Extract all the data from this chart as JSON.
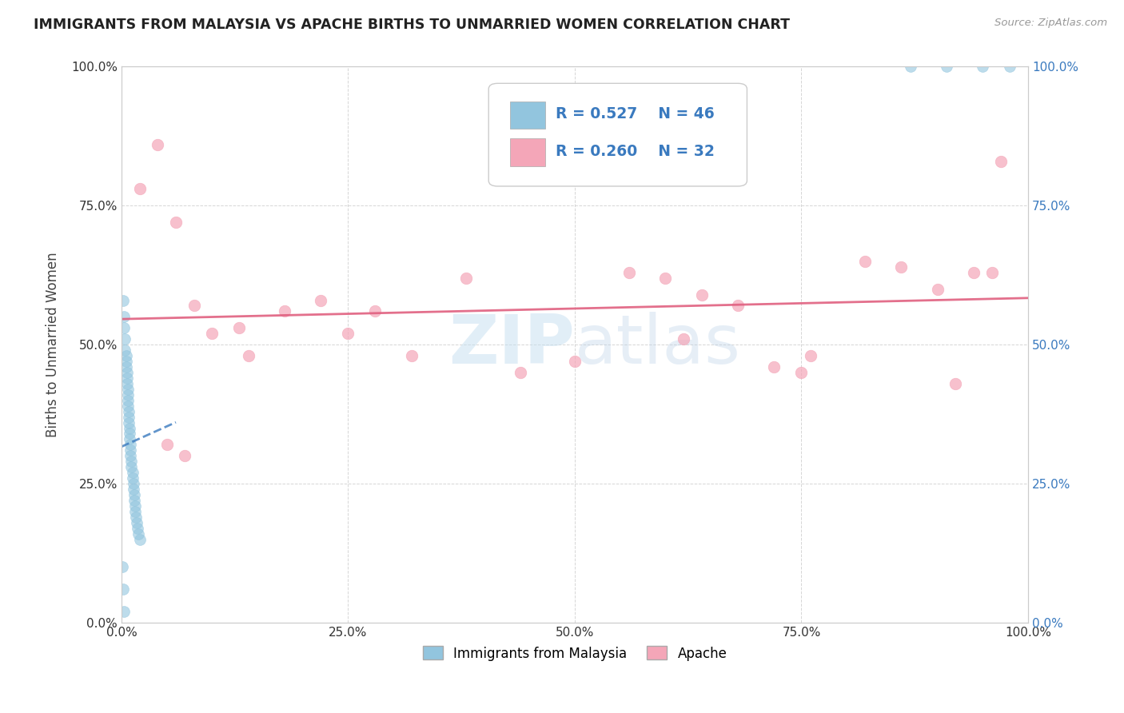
{
  "title": "IMMIGRANTS FROM MALAYSIA VS APACHE BIRTHS TO UNMARRIED WOMEN CORRELATION CHART",
  "source": "Source: ZipAtlas.com",
  "ylabel": "Births to Unmarried Women",
  "legend_label1": "Immigrants from Malaysia",
  "legend_label2": "Apache",
  "r1": 0.527,
  "n1": 46,
  "r2": 0.26,
  "n2": 32,
  "blue_color": "#92c5de",
  "pink_color": "#f4a6b8",
  "blue_line_color": "#3a7abf",
  "pink_line_color": "#e06080",
  "blue_x": [
    0.002,
    0.003,
    0.003,
    0.004,
    0.004,
    0.005,
    0.005,
    0.005,
    0.006,
    0.006,
    0.006,
    0.007,
    0.007,
    0.007,
    0.007,
    0.008,
    0.008,
    0.008,
    0.009,
    0.009,
    0.009,
    0.01,
    0.01,
    0.01,
    0.011,
    0.011,
    0.012,
    0.012,
    0.013,
    0.013,
    0.014,
    0.014,
    0.015,
    0.015,
    0.016,
    0.017,
    0.018,
    0.019,
    0.02,
    0.001,
    0.002,
    0.003,
    0.87,
    0.91,
    0.95,
    0.98
  ],
  "blue_y": [
    0.58,
    0.55,
    0.53,
    0.51,
    0.49,
    0.48,
    0.47,
    0.46,
    0.45,
    0.44,
    0.43,
    0.42,
    0.41,
    0.4,
    0.39,
    0.38,
    0.37,
    0.36,
    0.35,
    0.34,
    0.33,
    0.32,
    0.31,
    0.3,
    0.29,
    0.28,
    0.27,
    0.26,
    0.25,
    0.24,
    0.23,
    0.22,
    0.21,
    0.2,
    0.19,
    0.18,
    0.17,
    0.16,
    0.15,
    0.1,
    0.06,
    0.02,
    1.0,
    1.0,
    1.0,
    1.0
  ],
  "pink_x": [
    0.02,
    0.04,
    0.06,
    0.08,
    0.1,
    0.13,
    0.14,
    0.18,
    0.22,
    0.25,
    0.28,
    0.32,
    0.38,
    0.44,
    0.5,
    0.56,
    0.6,
    0.64,
    0.68,
    0.72,
    0.76,
    0.82,
    0.86,
    0.9,
    0.92,
    0.94,
    0.96,
    0.97,
    0.05,
    0.07,
    0.62,
    0.75
  ],
  "pink_y": [
    0.78,
    0.86,
    0.72,
    0.57,
    0.52,
    0.53,
    0.48,
    0.56,
    0.58,
    0.52,
    0.56,
    0.48,
    0.62,
    0.45,
    0.47,
    0.63,
    0.62,
    0.59,
    0.57,
    0.46,
    0.48,
    0.65,
    0.64,
    0.6,
    0.43,
    0.63,
    0.63,
    0.83,
    0.32,
    0.3,
    0.51,
    0.45
  ],
  "xmin": 0.0,
  "xmax": 1.0,
  "ymin": 0.0,
  "ymax": 1.0,
  "xticks": [
    0.0,
    0.25,
    0.5,
    0.75,
    1.0
  ],
  "yticks": [
    0.0,
    0.25,
    0.5,
    0.75,
    1.0
  ],
  "xtick_labels": [
    "0.0%",
    "25.0%",
    "50.0%",
    "75.0%",
    "100.0%"
  ],
  "ytick_labels": [
    "0.0%",
    "25.0%",
    "50.0%",
    "75.0%",
    "100.0%"
  ],
  "right_ytick_labels": [
    "0.0%",
    "25.0%",
    "50.0%",
    "75.0%",
    "100.0%"
  ],
  "bg_color": "#ffffff",
  "grid_color": "#cccccc"
}
